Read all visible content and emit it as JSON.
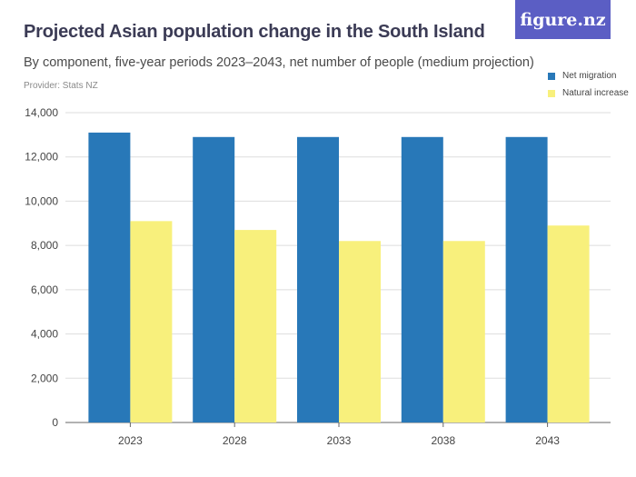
{
  "header": {
    "title": "Projected Asian population change in the South Island",
    "subtitle": "By component, five-year periods 2023–2043, net number of people (medium projection)",
    "provider": "Provider: Stats NZ",
    "logo_text": "figure.nz"
  },
  "colors": {
    "net_migration": "#2878b8",
    "natural_increase": "#f8f07c",
    "grid": "#dddddd",
    "logo_bg": "#5b5ec4"
  },
  "chart_data": {
    "type": "bar",
    "categories": [
      "2023",
      "2028",
      "2033",
      "2038",
      "2043"
    ],
    "series": [
      {
        "name": "Net migration",
        "values": [
          13100,
          12900,
          12900,
          12900,
          12900
        ]
      },
      {
        "name": "Natural increase",
        "values": [
          9100,
          8700,
          8200,
          8200,
          8900
        ]
      }
    ],
    "ylim": [
      0,
      14000
    ],
    "yticks": [
      0,
      2000,
      4000,
      6000,
      8000,
      10000,
      12000,
      14000
    ],
    "ytick_labels": [
      "0",
      "2,000",
      "4,000",
      "6,000",
      "8,000",
      "10,000",
      "12,000",
      "14,000"
    ],
    "grid": true,
    "legend_position": "top-right"
  }
}
